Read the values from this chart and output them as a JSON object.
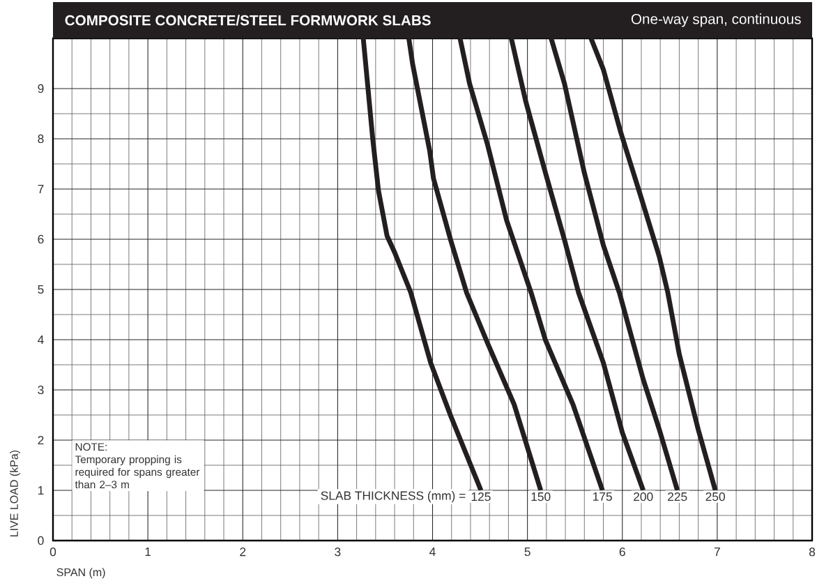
{
  "chart_data": {
    "type": "line",
    "title": "COMPOSITE CONCRETE/STEEL FORMWORK SLABS",
    "subtitle": "One-way span, continuous",
    "xlabel": "SPAN (m)",
    "ylabel": "LIVE LOAD (kPa)",
    "legend_title": "SLAB THICKNESS (mm) =",
    "xlim": [
      0,
      8
    ],
    "ylim": [
      0,
      10
    ],
    "xticks": [
      0,
      1,
      2,
      3,
      4,
      5,
      6,
      7,
      8
    ],
    "yticks": [
      0,
      1,
      2,
      3,
      4,
      5,
      6,
      7,
      8,
      9
    ],
    "grid": true,
    "marker": "none",
    "line_style": "solid",
    "annotations": [
      "NOTE:",
      "Temporary propping is required for spans greater than 2–3 m"
    ],
    "series": [
      {
        "name": "125",
        "color": "#231f20",
        "x": [
          3.27,
          3.37,
          3.43,
          3.52,
          3.6,
          3.77,
          3.98,
          4.19,
          4.51
        ],
        "values": [
          10.0,
          7.99,
          6.97,
          6.07,
          5.74,
          4.94,
          3.54,
          2.49,
          1.0
        ]
      },
      {
        "name": "150",
        "color": "#231f20",
        "x": [
          3.75,
          3.79,
          3.97,
          4.01,
          4.19,
          4.36,
          4.58,
          4.86,
          5.14
        ],
        "values": [
          10.0,
          9.49,
          7.76,
          7.21,
          5.99,
          4.93,
          3.93,
          2.71,
          1.0
        ]
      },
      {
        "name": "175",
        "color": "#231f20",
        "x": [
          4.29,
          4.39,
          4.58,
          4.78,
          5.04,
          5.19,
          5.48,
          5.79
        ],
        "values": [
          10.0,
          9.1,
          7.88,
          6.38,
          4.93,
          3.99,
          2.71,
          1.0
        ]
      },
      {
        "name": "200",
        "color": "#231f20",
        "x": [
          4.83,
          4.98,
          5.19,
          5.39,
          5.54,
          5.8,
          6.0,
          6.22
        ],
        "values": [
          10.0,
          8.76,
          7.32,
          5.99,
          4.93,
          3.54,
          2.15,
          1.0
        ]
      },
      {
        "name": "225",
        "color": "#231f20",
        "x": [
          5.25,
          5.39,
          5.6,
          5.8,
          5.97,
          6.22,
          6.39,
          6.58
        ],
        "values": [
          10.0,
          9.1,
          7.32,
          5.88,
          4.93,
          3.21,
          2.21,
          1.0
        ]
      },
      {
        "name": "250",
        "color": "#231f20",
        "x": [
          5.67,
          5.8,
          5.98,
          6.19,
          6.39,
          6.48,
          6.6,
          6.8,
          6.98
        ],
        "values": [
          10.0,
          9.38,
          8.15,
          6.88,
          5.65,
          4.93,
          3.71,
          2.21,
          1.0
        ]
      }
    ]
  }
}
